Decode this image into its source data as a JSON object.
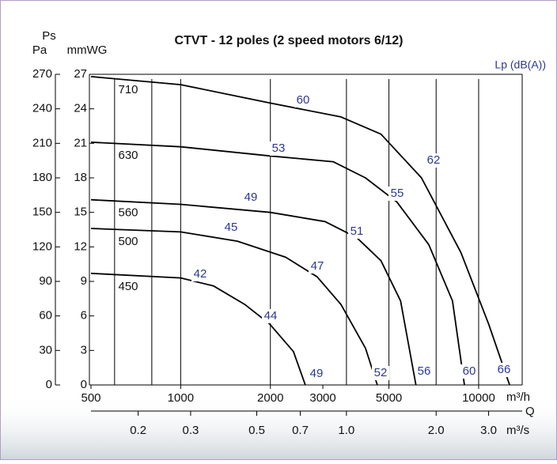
{
  "chart_data": {
    "type": "line",
    "title": "CTVT - 12 poles (2 speed motors 6/12)",
    "y_label_top": "Ps",
    "y_label": "Pa",
    "y2_label": "mmWG",
    "x_unit": "m³/h",
    "x2_unit": "m³/s",
    "x_label": "Q",
    "noise_label": "Lp (dB(A))",
    "log_x": true,
    "xlim": [
      500,
      14000
    ],
    "xticks": [
      500,
      1000,
      2000,
      3000,
      5000,
      10000
    ],
    "xgrid": [
      600,
      800,
      1000,
      2000,
      3600,
      5000,
      7200,
      10000
    ],
    "x2lim": [
      0.1389,
      3.889
    ],
    "x2ticks": [
      0.2,
      0.3,
      0.5,
      0.7,
      {
        "value": 1,
        "label": "1.0"
      },
      {
        "value": 2,
        "label": "2.0"
      },
      {
        "value": 3,
        "label": "3.0"
      }
    ],
    "ylim": [
      0,
      270
    ],
    "yticks": [
      0,
      30,
      60,
      90,
      120,
      150,
      180,
      210,
      240,
      270
    ],
    "y2lim": [
      0,
      27
    ],
    "y2ticks": [
      0,
      3,
      6,
      9,
      12,
      15,
      18,
      21,
      24,
      27
    ],
    "series": [
      {
        "name": "710",
        "color": "#000000",
        "x": [
          500,
          1000,
          2000,
          3450,
          4700,
          6430,
          8720,
          10800,
          12700
        ],
        "y": [
          268,
          261,
          245,
          233,
          218,
          180,
          115,
          53,
          0
        ],
        "noise": [
          60,
          62,
          66
        ]
      },
      {
        "name": "630",
        "color": "#000000",
        "x": [
          500,
          1000,
          2000,
          3250,
          4170,
          5320,
          6800,
          8170,
          8960
        ],
        "y": [
          211,
          207,
          199,
          194,
          180,
          159,
          122,
          73,
          0
        ],
        "noise": [
          53,
          55,
          60
        ]
      },
      {
        "name": "560",
        "color": "#000000",
        "x": [
          500,
          1000,
          2000,
          3050,
          3900,
          4700,
          5470,
          6160
        ],
        "y": [
          161,
          157,
          150,
          142,
          128,
          108,
          73,
          0
        ],
        "noise": [
          49,
          51,
          56
        ]
      },
      {
        "name": "500",
        "color": "#000000",
        "x": [
          500,
          1000,
          1550,
          2250,
          2870,
          3450,
          4170,
          4570
        ],
        "y": [
          136,
          133,
          125,
          111,
          94,
          70,
          32,
          0
        ],
        "noise": [
          45,
          47,
          52
        ]
      },
      {
        "name": "450",
        "color": "#000000",
        "x": [
          500,
          1000,
          1290,
          1640,
          1990,
          2390,
          2620
        ],
        "y": [
          97,
          93,
          86,
          70,
          53,
          29,
          0
        ],
        "noise": [
          42,
          44,
          49
        ]
      }
    ]
  }
}
